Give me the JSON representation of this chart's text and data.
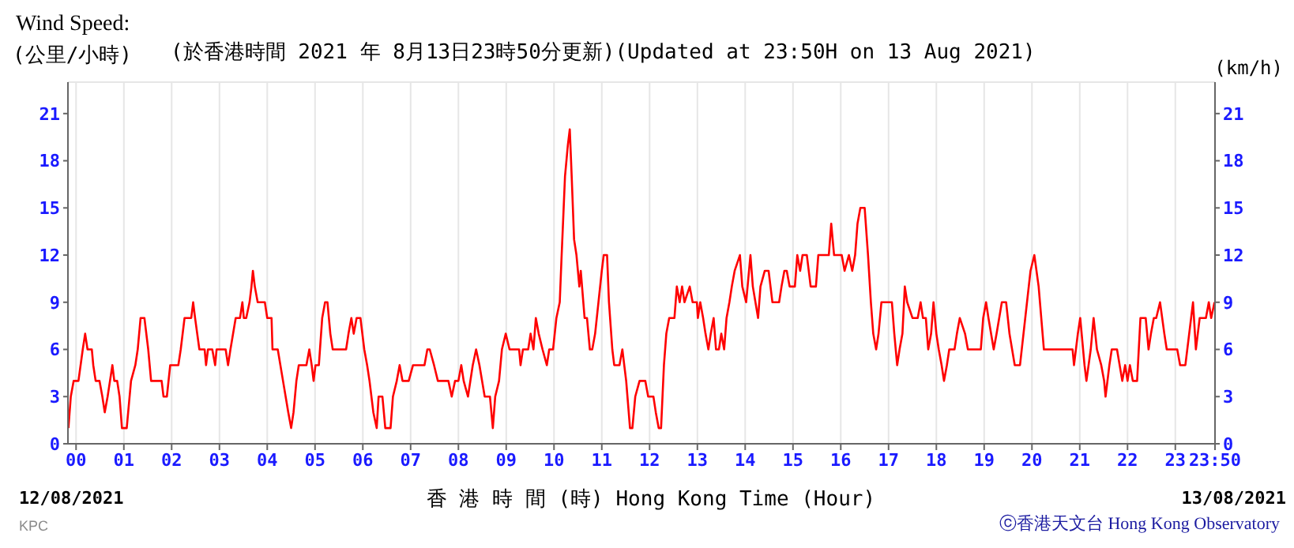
{
  "chart_data": {
    "type": "line",
    "title": "Wind Speed:",
    "subtitle": "(於香港時間 2021 年 8月13日23時50分更新)(Updated at 23:50H on 13 Aug 2021)",
    "ylabel": "(公里/小時)",
    "y2label": "(km/h)",
    "xlabel": "香 港 時 間 (時) Hong Kong Time (Hour)",
    "annotations": [
      "12/08/2021",
      "13/08/2021",
      "ⓒ香港天文台 Hong Kong Observatory",
      "KPC"
    ],
    "x": [
      -0.16,
      -0.11,
      -0.05,
      0.05,
      0.14,
      0.19,
      0.24,
      0.33,
      0.36,
      0.41,
      0.49,
      0.55,
      0.6,
      0.66,
      0.71,
      0.76,
      0.8,
      0.86,
      0.91,
      0.96,
      1.06,
      1.15,
      1.24,
      1.29,
      1.35,
      1.43,
      1.51,
      1.57,
      1.79,
      1.83,
      1.9,
      1.97,
      2.14,
      2.19,
      2.27,
      2.41,
      2.45,
      2.49,
      2.58,
      2.69,
      2.72,
      2.76,
      2.85,
      2.91,
      2.94,
      3.13,
      3.18,
      3.23,
      3.34,
      3.43,
      3.48,
      3.51,
      3.56,
      3.63,
      3.67,
      3.7,
      3.74,
      3.8,
      3.95,
      4.0,
      4.09,
      4.11,
      4.22,
      4.33,
      4.44,
      4.5,
      4.55,
      4.61,
      4.66,
      4.82,
      4.88,
      4.93,
      4.97,
      5.01,
      5.08,
      5.15,
      5.21,
      5.26,
      5.32,
      5.37,
      5.65,
      5.7,
      5.76,
      5.81,
      5.87,
      5.95,
      6.03,
      6.09,
      6.14,
      6.22,
      6.29,
      6.33,
      6.41,
      6.47,
      6.58,
      6.63,
      6.71,
      6.77,
      6.83,
      6.96,
      7.05,
      7.29,
      7.35,
      7.4,
      7.49,
      7.57,
      7.79,
      7.86,
      7.93,
      8.0,
      8.06,
      8.11,
      8.2,
      8.3,
      8.37,
      8.44,
      8.55,
      8.66,
      8.72,
      8.77,
      8.85,
      8.91,
      8.99,
      9.07,
      9.27,
      9.3,
      9.35,
      9.46,
      9.51,
      9.57,
      9.62,
      9.68,
      9.76,
      9.85,
      9.9,
      9.98,
      10.05,
      10.12,
      10.16,
      10.23,
      10.29,
      10.33,
      10.37,
      10.42,
      10.47,
      10.53,
      10.56,
      10.64,
      10.69,
      10.75,
      10.8,
      10.86,
      10.93,
      11.0,
      11.04,
      11.11,
      11.15,
      11.22,
      11.26,
      11.37,
      11.43,
      11.51,
      11.59,
      11.64,
      11.7,
      11.79,
      11.91,
      11.97,
      12.08,
      12.13,
      12.19,
      12.24,
      12.3,
      12.35,
      12.41,
      12.52,
      12.57,
      12.63,
      12.68,
      12.73,
      12.84,
      12.9,
      12.99,
      13.01,
      13.06,
      13.12,
      13.17,
      13.23,
      13.28,
      13.34,
      13.39,
      13.45,
      13.5,
      13.56,
      13.61,
      13.67,
      13.72,
      13.78,
      13.89,
      13.94,
      14.02,
      14.11,
      14.16,
      14.27,
      14.32,
      14.41,
      14.49,
      14.57,
      14.71,
      14.76,
      14.82,
      14.87,
      14.93,
      15.04,
      15.09,
      15.15,
      15.2,
      15.29,
      15.37,
      15.48,
      15.53,
      15.62,
      15.75,
      15.8,
      15.86,
      16.02,
      16.08,
      16.17,
      16.24,
      16.3,
      16.35,
      16.41,
      16.5,
      16.57,
      16.63,
      16.68,
      16.74,
      16.79,
      16.85,
      17.07,
      17.12,
      17.18,
      17.23,
      17.29,
      17.34,
      17.39,
      17.5,
      17.61,
      17.67,
      17.72,
      17.78,
      17.83,
      17.89,
      17.94,
      18.0,
      18.05,
      18.11,
      18.16,
      18.22,
      18.27,
      18.38,
      18.43,
      18.49,
      18.6,
      18.66,
      18.93,
      18.98,
      19.04,
      19.09,
      19.2,
      19.26,
      19.37,
      19.46,
      19.53,
      19.64,
      19.75,
      19.86,
      19.97,
      20.05,
      20.14,
      20.25,
      20.68,
      20.85,
      20.88,
      20.96,
      21.01,
      21.1,
      21.14,
      21.23,
      21.29,
      21.36,
      21.45,
      21.51,
      21.54,
      21.62,
      21.67,
      21.78,
      21.89,
      21.95,
      22.0,
      22.05,
      22.11,
      22.2,
      22.27,
      22.38,
      22.44,
      22.49,
      22.55,
      22.6,
      22.68,
      22.77,
      22.82,
      23.04,
      23.1,
      23.21,
      23.29,
      23.37,
      23.43,
      23.51,
      23.64,
      23.7,
      23.75,
      23.82
    ],
    "series": [
      {
        "color": "#ff0000",
        "values": [
          1,
          3,
          4,
          4,
          6,
          7,
          6,
          6,
          5,
          4,
          4,
          3,
          2,
          3,
          4,
          5,
          4,
          4,
          3,
          1,
          1,
          4,
          5,
          6,
          8,
          8,
          6,
          4,
          4,
          3,
          3,
          5,
          5,
          6,
          8,
          8,
          9,
          8,
          6,
          6,
          5,
          6,
          6,
          5,
          6,
          6,
          5,
          6,
          8,
          8,
          9,
          8,
          8,
          9,
          10,
          11,
          10,
          9,
          9,
          8,
          8,
          6,
          6,
          4,
          2,
          1,
          2,
          4,
          5,
          5,
          6,
          5,
          4,
          5,
          5,
          8,
          9,
          9,
          7,
          6,
          6,
          7,
          8,
          7,
          8,
          8,
          6,
          5,
          4,
          2,
          1,
          3,
          3,
          1,
          1,
          3,
          4,
          5,
          4,
          4,
          5,
          5,
          6,
          6,
          5,
          4,
          4,
          3,
          4,
          4,
          5,
          4,
          3,
          5,
          6,
          5,
          3,
          3,
          1,
          3,
          4,
          6,
          7,
          6,
          6,
          5,
          6,
          6,
          7,
          6,
          8,
          7,
          6,
          5,
          6,
          6,
          8,
          9,
          12,
          17,
          19,
          20,
          17,
          13,
          12,
          10,
          11,
          8,
          8,
          6,
          6,
          7,
          9,
          11,
          12,
          12,
          9,
          6,
          5,
          5,
          6,
          4,
          1,
          1,
          3,
          4,
          4,
          3,
          3,
          2,
          1,
          1,
          5,
          7,
          8,
          8,
          10,
          9,
          10,
          9,
          10,
          9,
          9,
          8,
          9,
          8,
          7,
          6,
          7,
          8,
          6,
          6,
          7,
          6,
          8,
          9,
          10,
          11,
          12,
          10,
          9,
          12,
          10,
          8,
          10,
          11,
          11,
          9,
          9,
          10,
          11,
          11,
          10,
          10,
          12,
          11,
          12,
          12,
          10,
          10,
          12,
          12,
          12,
          14,
          12,
          12,
          11,
          12,
          11,
          12,
          14,
          15,
          15,
          12,
          9,
          7,
          6,
          7,
          9,
          9,
          7,
          5,
          6,
          7,
          10,
          9,
          8,
          8,
          9,
          8,
          8,
          6,
          7,
          9,
          7,
          6,
          5,
          4,
          5,
          6,
          6,
          7,
          8,
          7,
          6,
          6,
          8,
          9,
          8,
          6,
          7,
          9,
          9,
          7,
          5,
          5,
          8,
          11,
          12,
          10,
          6,
          6,
          6,
          5,
          7,
          8,
          5,
          4,
          6,
          8,
          6,
          5,
          4,
          3,
          5,
          6,
          6,
          4,
          5,
          4,
          5,
          4,
          4,
          8,
          8,
          6,
          7,
          8,
          8,
          9,
          7,
          6,
          6,
          5,
          5,
          7,
          9,
          6,
          8,
          8,
          9,
          8,
          9
        ]
      }
    ],
    "xlim": [
      -0.17,
      23.83
    ],
    "xticks": [
      {
        "value": 0,
        "label": "00"
      },
      {
        "value": 1,
        "label": "01"
      },
      {
        "value": 2,
        "label": "02"
      },
      {
        "value": 3,
        "label": "03"
      },
      {
        "value": 4,
        "label": "04"
      },
      {
        "value": 5,
        "label": "05"
      },
      {
        "value": 6,
        "label": "06"
      },
      {
        "value": 7,
        "label": "07"
      },
      {
        "value": 8,
        "label": "08"
      },
      {
        "value": 9,
        "label": "09"
      },
      {
        "value": 10,
        "label": "10"
      },
      {
        "value": 11,
        "label": "11"
      },
      {
        "value": 12,
        "label": "12"
      },
      {
        "value": 13,
        "label": "13"
      },
      {
        "value": 14,
        "label": "14"
      },
      {
        "value": 15,
        "label": "15"
      },
      {
        "value": 16,
        "label": "16"
      },
      {
        "value": 17,
        "label": "17"
      },
      {
        "value": 18,
        "label": "18"
      },
      {
        "value": 19,
        "label": "19"
      },
      {
        "value": 20,
        "label": "20"
      },
      {
        "value": 21,
        "label": "21"
      },
      {
        "value": 22,
        "label": "22"
      },
      {
        "value": 23,
        "label": "23"
      },
      {
        "value": 23.83,
        "label": "23:50"
      }
    ],
    "ylim": [
      0,
      23
    ],
    "yticks": [
      0,
      3,
      6,
      9,
      12,
      15,
      18,
      21
    ],
    "y2lim": [
      0,
      23
    ],
    "y2ticks": [
      0,
      3,
      6,
      9,
      12,
      15,
      18,
      21
    ],
    "grid": true,
    "legend": false,
    "marker": "none",
    "line_style": "solid"
  }
}
